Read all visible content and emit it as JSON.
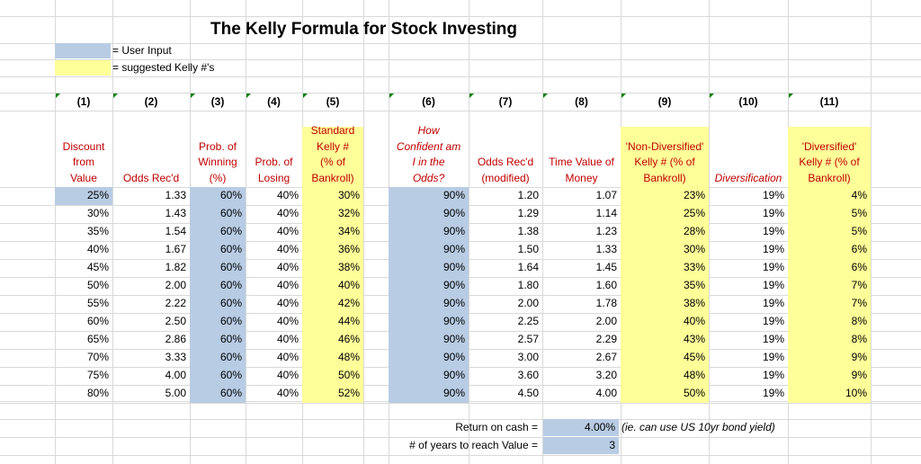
{
  "title": "The Kelly Formula for Stock Investing",
  "legend": [
    {
      "label": "= User Input",
      "color": "#b8cce4"
    },
    {
      "label": "= suggested Kelly #'s",
      "color": "#ffff99"
    }
  ],
  "col_numbers": [
    "(1)",
    "(2)",
    "(3)",
    "(4)",
    "(5)",
    "(6)",
    "(7)",
    "(8)",
    "(9)",
    "(10)",
    "(11)"
  ],
  "headers": [
    [
      "Discount",
      "from",
      "Value"
    ],
    [
      "Odds Rec'd"
    ],
    [
      "Prob. of",
      "Winning",
      "(%)"
    ],
    [
      "Prob. of",
      "Losing"
    ],
    [
      "Standard",
      "Kelly #",
      "(% of",
      "Bankroll)"
    ],
    [
      "How",
      "Confident am",
      "I in the",
      "Odds?"
    ],
    [
      "Odds Rec'd",
      "(modified)"
    ],
    [
      "Time Value of",
      "Money"
    ],
    [
      "'Non-Diversified'",
      "Kelly # (% of",
      "Bankroll)"
    ],
    [
      "Diversification"
    ],
    [
      "'Diversified'",
      "Kelly # (% of",
      "Bankroll)"
    ]
  ],
  "rows": [
    [
      "25%",
      "1.33",
      "60%",
      "40%",
      "30%",
      "90%",
      "1.20",
      "1.07",
      "23%",
      "19%",
      "4%"
    ],
    [
      "30%",
      "1.43",
      "60%",
      "40%",
      "32%",
      "90%",
      "1.29",
      "1.14",
      "25%",
      "19%",
      "5%"
    ],
    [
      "35%",
      "1.54",
      "60%",
      "40%",
      "34%",
      "90%",
      "1.38",
      "1.23",
      "28%",
      "19%",
      "5%"
    ],
    [
      "40%",
      "1.67",
      "60%",
      "40%",
      "36%",
      "90%",
      "1.50",
      "1.33",
      "30%",
      "19%",
      "6%"
    ],
    [
      "45%",
      "1.82",
      "60%",
      "40%",
      "38%",
      "90%",
      "1.64",
      "1.45",
      "33%",
      "19%",
      "6%"
    ],
    [
      "50%",
      "2.00",
      "60%",
      "40%",
      "40%",
      "90%",
      "1.80",
      "1.60",
      "35%",
      "19%",
      "7%"
    ],
    [
      "55%",
      "2.22",
      "60%",
      "40%",
      "42%",
      "90%",
      "2.00",
      "1.78",
      "38%",
      "19%",
      "7%"
    ],
    [
      "60%",
      "2.50",
      "60%",
      "40%",
      "44%",
      "90%",
      "2.25",
      "2.00",
      "40%",
      "19%",
      "8%"
    ],
    [
      "65%",
      "2.86",
      "60%",
      "40%",
      "46%",
      "90%",
      "2.57",
      "2.29",
      "43%",
      "19%",
      "8%"
    ],
    [
      "70%",
      "3.33",
      "60%",
      "40%",
      "48%",
      "90%",
      "3.00",
      "2.67",
      "45%",
      "19%",
      "9%"
    ],
    [
      "75%",
      "4.00",
      "60%",
      "40%",
      "50%",
      "90%",
      "3.60",
      "3.20",
      "48%",
      "19%",
      "9%"
    ],
    [
      "80%",
      "5.00",
      "60%",
      "40%",
      "52%",
      "90%",
      "4.50",
      "4.00",
      "50%",
      "19%",
      "10%"
    ]
  ],
  "footer": {
    "return_label": "Return on cash =",
    "return_value": "4.00%",
    "return_note": "(ie. can use US 10yr bond yield)",
    "years_label": "# of years to reach Value =",
    "years_value": "3"
  },
  "colors": {
    "user_input": "#b8cce4",
    "kelly": "#ffff99",
    "header_text": "#c00000"
  }
}
